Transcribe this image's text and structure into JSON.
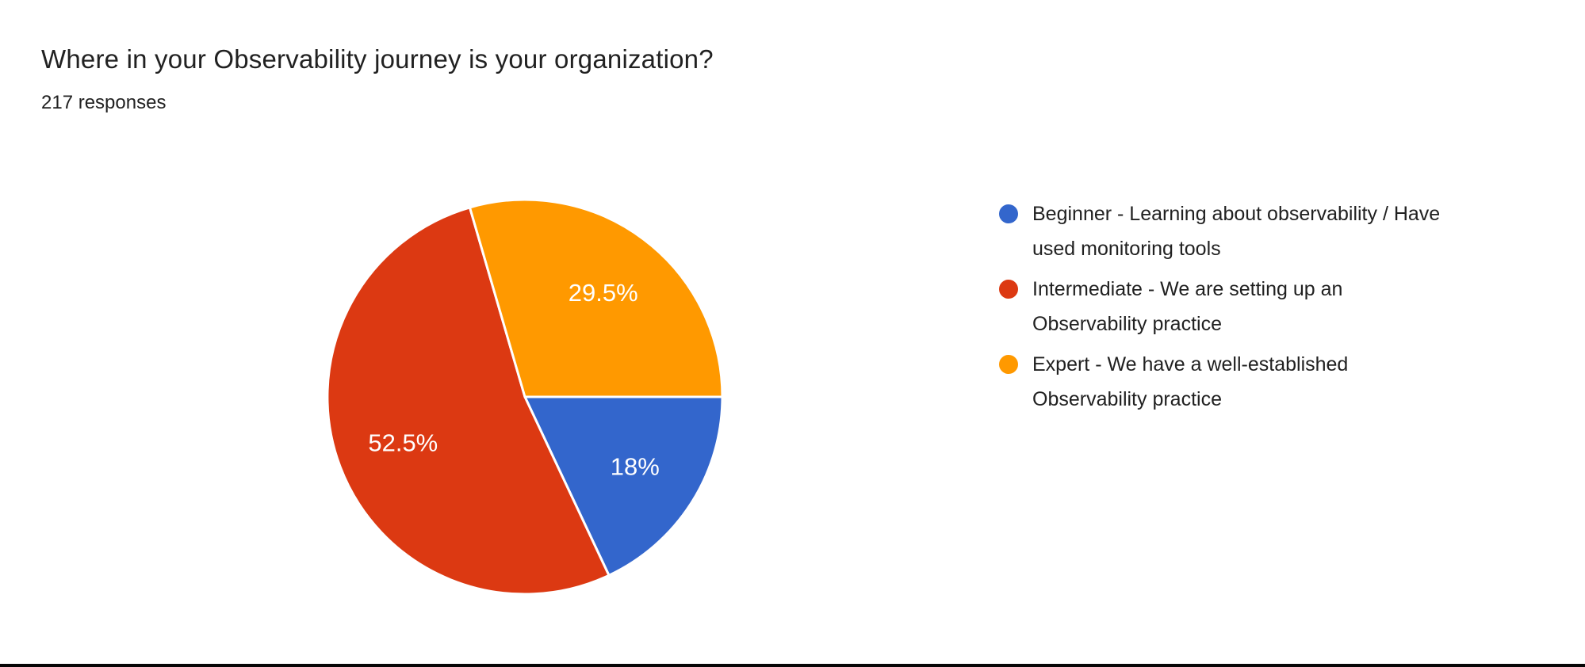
{
  "header": {
    "title": "Where in your Observability journey is your organization?",
    "subtitle": "217 responses"
  },
  "chart_data": {
    "type": "pie",
    "title": "Where in your Observability journey is your organization?",
    "responses_label": "217 responses",
    "total_responses": 217,
    "start_angle_deg": 0,
    "direction": "clockwise",
    "legend_position": "right",
    "label_color": "#ffffff",
    "slices": [
      {
        "label": "Beginner - Learning about observability / Have used monitoring tools",
        "value_pct": 18,
        "display": "18%",
        "color": "#3366CC"
      },
      {
        "label": "Intermediate - We are setting up an Observability practice",
        "value_pct": 52.5,
        "display": "52.5%",
        "color": "#DC3912"
      },
      {
        "label": "Expert - We have a well-established Observability practice",
        "value_pct": 29.5,
        "display": "29.5%",
        "color": "#FF9900"
      }
    ]
  }
}
